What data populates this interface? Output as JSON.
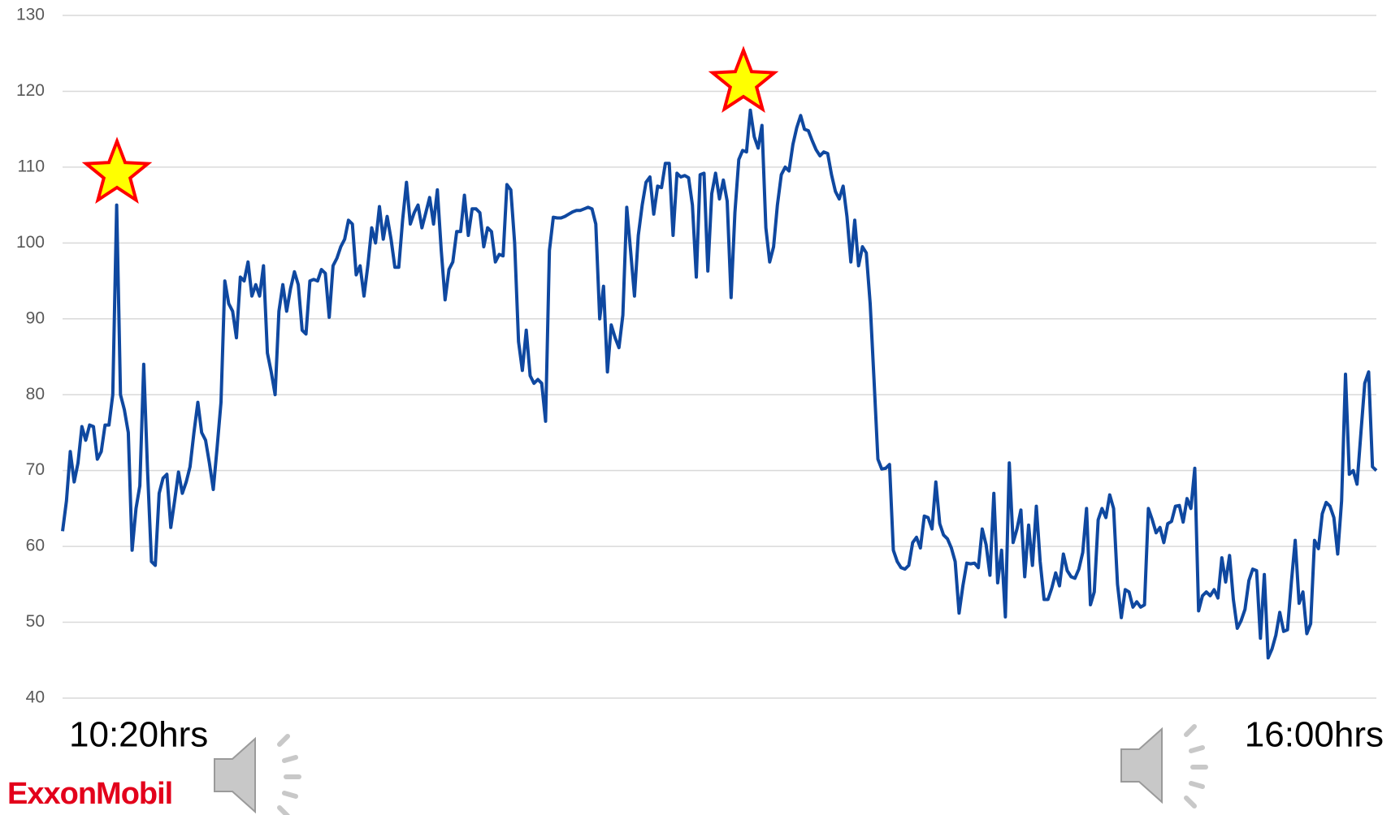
{
  "chart_data": {
    "type": "line",
    "values": [
      62,
      66,
      72.5,
      68.5,
      71,
      75.8,
      74,
      76,
      75.8,
      71.5,
      72.5,
      76,
      76,
      80,
      105,
      80,
      78,
      75,
      59.5,
      65,
      68,
      84,
      70,
      58,
      57.5,
      67,
      69,
      69.5,
      62.5,
      66,
      69.8,
      67,
      68.5,
      70.5,
      75,
      79,
      75,
      74,
      71,
      67.5,
      73,
      79,
      95,
      92,
      91,
      87.5,
      95.5,
      95,
      97.5,
      93,
      94.5,
      93,
      97,
      85.5,
      83,
      80,
      91,
      94.5,
      91,
      94,
      96.2,
      94.5,
      88.5,
      88,
      95,
      95.2,
      95,
      96.5,
      96,
      90.2,
      97,
      98,
      99.5,
      100.5,
      103,
      102.5,
      95.8,
      97,
      93,
      97,
      102,
      100,
      104.8,
      100.5,
      103.5,
      100.5,
      96.8,
      96.8,
      103,
      108,
      102.5,
      104,
      105,
      102,
      104,
      106,
      102.5,
      107,
      99,
      92.5,
      96.5,
      97.5,
      101.5,
      101.5,
      106.3,
      101,
      104.5,
      104.5,
      104,
      99.5,
      102,
      101.5,
      97.5,
      98.5,
      98.3,
      107.7,
      107,
      100,
      87,
      83.2,
      88.5,
      82.5,
      81.5,
      82,
      81.5,
      76.5,
      99,
      103.4,
      103.3,
      103.3,
      103.5,
      103.8,
      104.1,
      104.3,
      104.3,
      104.5,
      104.7,
      104.5,
      102.5,
      90,
      94.3,
      83,
      89.2,
      87.5,
      86.2,
      90.5,
      104.7,
      99,
      93,
      101,
      105,
      108,
      108.7,
      103.8,
      107.5,
      107.3,
      110.5,
      110.5,
      101,
      109.2,
      108.7,
      108.9,
      108.6,
      105,
      95.5,
      109,
      109.2,
      96.3,
      106.5,
      109.2,
      105.8,
      108.3,
      105.5,
      92.8,
      104,
      111,
      112.2,
      112,
      117.5,
      114,
      112.5,
      115.5,
      102,
      97.5,
      99.5,
      105,
      109,
      110,
      109.5,
      113,
      115.2,
      116.8,
      115,
      114.8,
      113.5,
      112.3,
      111.5,
      112,
      111.8,
      109,
      106.8,
      105.8,
      107.5,
      103.5,
      97.5,
      103,
      97,
      99.5,
      98.7,
      92,
      82,
      71.5,
      70.2,
      70.3,
      70.8,
      59.5,
      58,
      57.2,
      57,
      57.5,
      60.5,
      61.2,
      59.8,
      64,
      63.8,
      62.3,
      68.5,
      63,
      61.5,
      61,
      59.8,
      58,
      51.2,
      54.8,
      57.8,
      57.7,
      57.8,
      57.2,
      62.3,
      60.2,
      56.2,
      67,
      55.2,
      59.5,
      50.7,
      71,
      60.5,
      62.3,
      64.8,
      56,
      62.8,
      57.5,
      65.3,
      58,
      53,
      53,
      54.5,
      56.5,
      54.8,
      59,
      56.8,
      56,
      55.8,
      57,
      59.2,
      65,
      52.3,
      54,
      63.5,
      65,
      63.8,
      66.8,
      65,
      55,
      50.6,
      54.3,
      54,
      52,
      52.7,
      52,
      52.3,
      65,
      63.5,
      61.8,
      62.5,
      60.5,
      63,
      63.3,
      65.3,
      65.4,
      63.2,
      66.3,
      65,
      70.3,
      51.5,
      53.5,
      54,
      53.5,
      54.3,
      53.2,
      58.5,
      55.3,
      58.8,
      53,
      49.2,
      50.2,
      51.7,
      55.5,
      57,
      56.8,
      47.9,
      56.3,
      45.3,
      46.5,
      48.3,
      51.3,
      48.8,
      49,
      55.3,
      60.8,
      52.5,
      54,
      48.5,
      49.8,
      60.8,
      59.7,
      64.3,
      65.8,
      65.3,
      63.8,
      59,
      66,
      82.7,
      69.5,
      70,
      68.2,
      75,
      81.5,
      83,
      70.5,
      70
    ],
    "color": "#0f48a0",
    "ylim": [
      40,
      130
    ],
    "yticks": [
      40,
      50,
      60,
      70,
      80,
      90,
      100,
      110,
      120,
      130
    ],
    "grid": true,
    "annotations": [
      "10:20hrs",
      "16:00hrs"
    ]
  },
  "logo": "ExxonMobil"
}
